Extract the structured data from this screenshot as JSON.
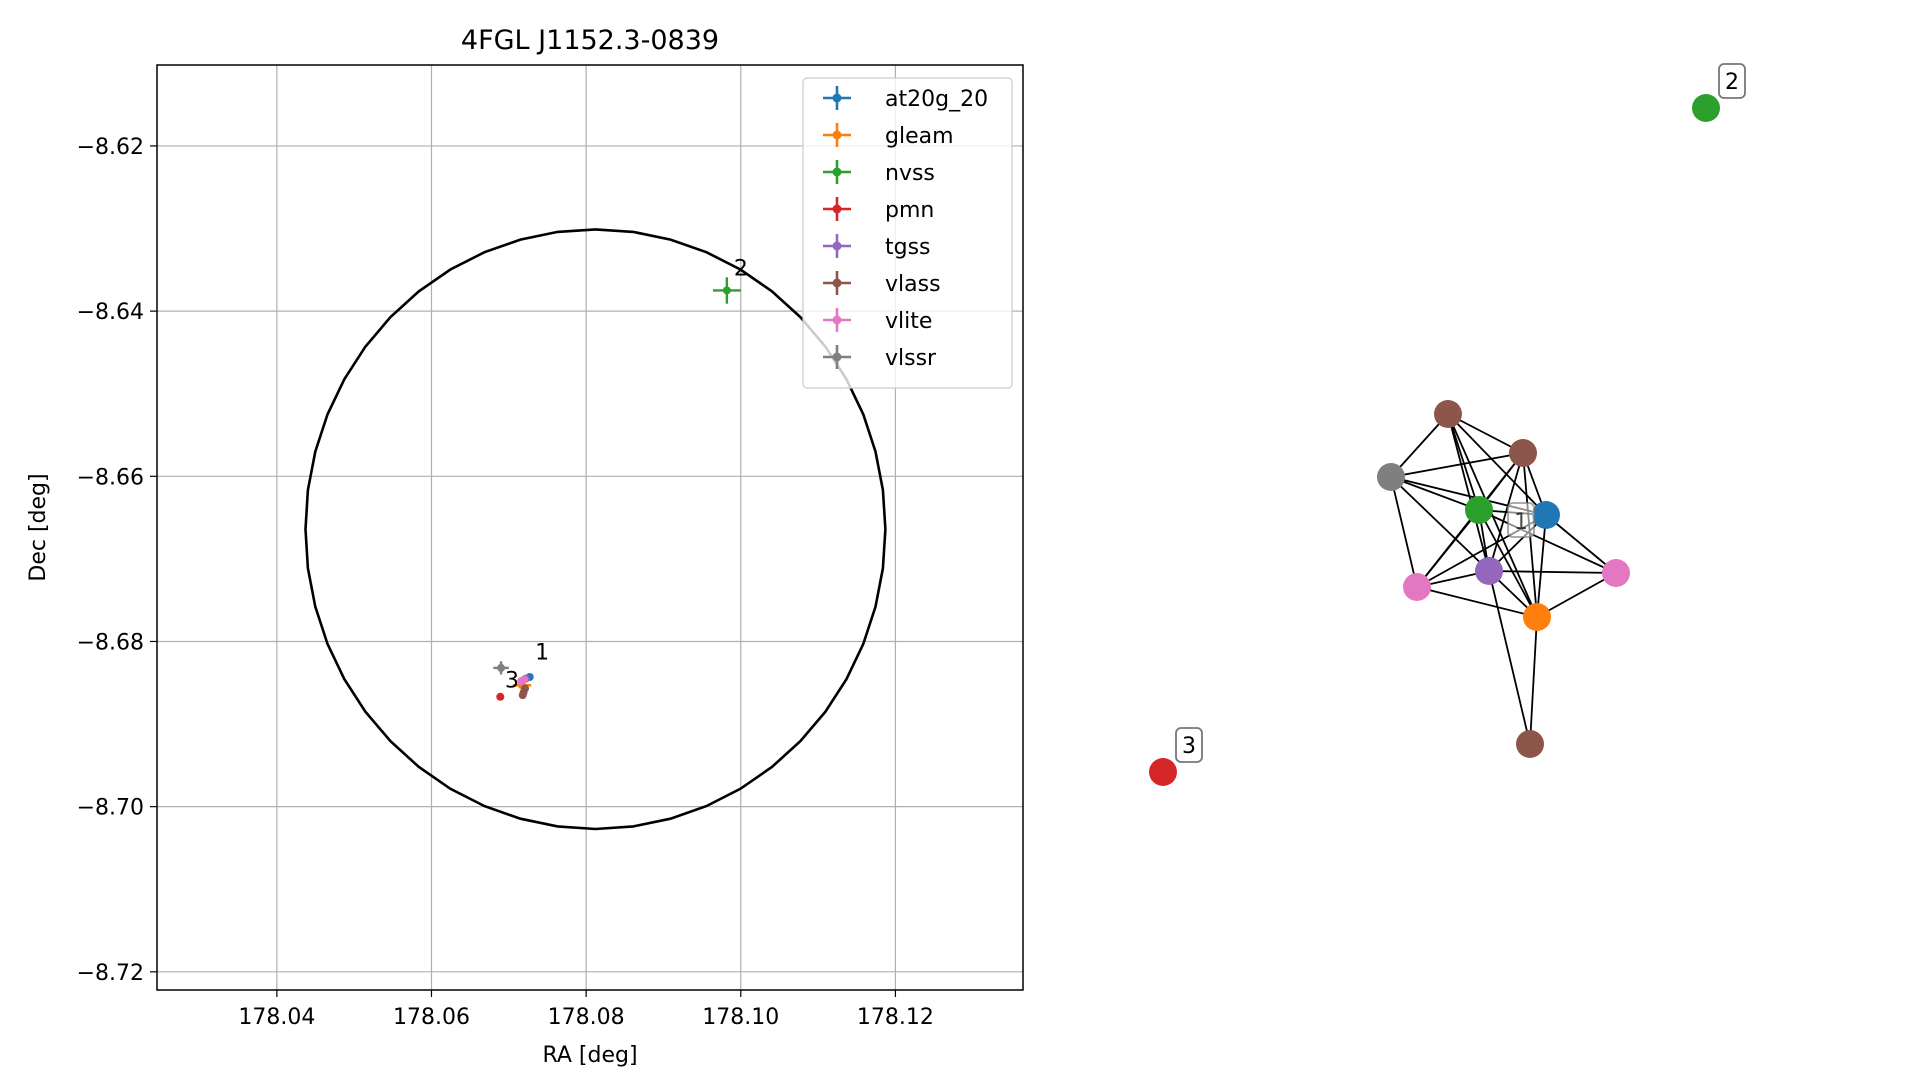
{
  "chart_data": [
    {
      "type": "scatter",
      "title": "4FGL J1152.3-0839",
      "xlabel": "RA [deg]",
      "ylabel": "Dec [deg]",
      "xlim": [
        178.0245,
        178.1365
      ],
      "ylim": [
        -8.7222,
        -8.6102
      ],
      "xticks": [
        178.04,
        178.06,
        178.08,
        178.1,
        178.12
      ],
      "xtick_labels": [
        "178.04",
        "178.06",
        "178.08",
        "178.10",
        "178.12"
      ],
      "yticks": [
        -8.62,
        -8.64,
        -8.66,
        -8.68,
        -8.7,
        -8.72
      ],
      "ytick_labels": [
        "−8.62",
        "−8.64",
        "−8.66",
        "−8.68",
        "−8.70",
        "−8.72"
      ],
      "grid": true,
      "legend_position": "upper right",
      "circle": {
        "center_x": 178.0812,
        "center_y": -8.6664,
        "radius_x": 0.0375,
        "radius_y": 0.0363,
        "color": "#000000"
      },
      "series": [
        {
          "name": "at20g_20",
          "color": "#1f77b4",
          "points": [
            {
              "x": 178.0727,
              "y": -8.6843,
              "xerr": 0.0004,
              "yerr": 0.0004
            }
          ]
        },
        {
          "name": "gleam",
          "color": "#ff7f0e",
          "points": [
            {
              "x": 178.0717,
              "y": -8.6853,
              "xerr": 0.0012,
              "yerr": 0.001
            }
          ]
        },
        {
          "name": "nvss",
          "color": "#2ca02c",
          "points": [
            {
              "x": 178.0982,
              "y": -8.6375,
              "xerr": 0.0018,
              "yerr": 0.0016
            }
          ]
        },
        {
          "name": "pmn",
          "color": "#d62728",
          "points": [
            {
              "x": 178.0689,
              "y": -8.6867,
              "xerr": 0.0002,
              "yerr": 0.0002
            }
          ]
        },
        {
          "name": "tgss",
          "color": "#9467bd",
          "points": [
            {
              "x": 178.0722,
              "y": -8.6845,
              "xerr": 0.0003,
              "yerr": 0.0003
            }
          ]
        },
        {
          "name": "vlass",
          "color": "#8c564b",
          "points": [
            {
              "x": 178.0719,
              "y": -8.6862,
              "xerr": 0.0002,
              "yerr": 0.0002
            },
            {
              "x": 178.0721,
              "y": -8.6857,
              "xerr": 0.0002,
              "yerr": 0.0002
            },
            {
              "x": 178.0718,
              "y": -8.6865,
              "xerr": 0.0002,
              "yerr": 0.0002
            }
          ]
        },
        {
          "name": "vlite",
          "color": "#e377c2",
          "points": [
            {
              "x": 178.0716,
              "y": -8.6848,
              "xerr": 0.0004,
              "yerr": 0.0004
            },
            {
              "x": 178.072,
              "y": -8.6846,
              "xerr": 0.0004,
              "yerr": 0.0004
            }
          ]
        },
        {
          "name": "vlssr",
          "color": "#7f7f7f",
          "points": [
            {
              "x": 178.069,
              "y": -8.6832,
              "xerr": 0.001,
              "yerr": 0.0008
            }
          ]
        }
      ],
      "annotations": [
        {
          "text": "1",
          "x": 178.0734,
          "y": -8.6822
        },
        {
          "text": "2",
          "x": 178.0991,
          "y": -8.6357
        },
        {
          "text": "3",
          "x": 178.0695,
          "y": -8.6856
        }
      ]
    },
    {
      "type": "network",
      "nodes": [
        {
          "id": "n2",
          "color": "#2ca02c",
          "label": "2"
        },
        {
          "id": "n3",
          "color": "#d62728",
          "label": "3"
        },
        {
          "id": "b1",
          "color": "#8c564b",
          "label": ""
        },
        {
          "id": "b2",
          "color": "#8c564b",
          "label": ""
        },
        {
          "id": "g",
          "color": "#7f7f7f",
          "label": ""
        },
        {
          "id": "gr",
          "color": "#2ca02c",
          "label": ""
        },
        {
          "id": "bl",
          "color": "#1f77b4",
          "label": ""
        },
        {
          "id": "pk1",
          "color": "#e377c2",
          "label": ""
        },
        {
          "id": "pu",
          "color": "#9467bd",
          "label": ""
        },
        {
          "id": "pk2",
          "color": "#e377c2",
          "label": ""
        },
        {
          "id": "or",
          "color": "#ff7f0e",
          "label": ""
        },
        {
          "id": "b3",
          "color": "#8c564b",
          "label": ""
        }
      ],
      "edges": [
        [
          "b1",
          "b2"
        ],
        [
          "b1",
          "g"
        ],
        [
          "b1",
          "gr"
        ],
        [
          "b1",
          "pu"
        ],
        [
          "b1",
          "bl"
        ],
        [
          "b1",
          "or"
        ],
        [
          "b2",
          "g"
        ],
        [
          "b2",
          "gr"
        ],
        [
          "b2",
          "pu"
        ],
        [
          "b2",
          "pk1"
        ],
        [
          "b2",
          "or"
        ],
        [
          "b2",
          "bl"
        ],
        [
          "g",
          "gr"
        ],
        [
          "g",
          "bl"
        ],
        [
          "g",
          "pk1"
        ],
        [
          "g",
          "pu"
        ],
        [
          "gr",
          "bl"
        ],
        [
          "gr",
          "pk1"
        ],
        [
          "gr",
          "pu"
        ],
        [
          "gr",
          "or"
        ],
        [
          "gr",
          "pk2"
        ],
        [
          "bl",
          "pu"
        ],
        [
          "bl",
          "or"
        ],
        [
          "bl",
          "pk2"
        ],
        [
          "pk1",
          "pu"
        ],
        [
          "pk1",
          "or"
        ],
        [
          "pk1",
          "bl"
        ],
        [
          "pu",
          "pk2"
        ],
        [
          "pu",
          "or"
        ],
        [
          "pu",
          "b3"
        ],
        [
          "or",
          "b3"
        ],
        [
          "or",
          "pk2"
        ]
      ],
      "cluster_label": "1"
    }
  ]
}
